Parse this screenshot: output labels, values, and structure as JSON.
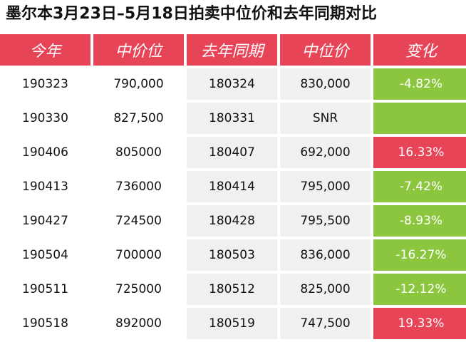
{
  "title": "墨尔本3月23日–5月18日拍卖中位价和去年同期对比",
  "headers": [
    "今年",
    "中价位",
    "去年同期",
    "中位价",
    "变化"
  ],
  "rows": [
    {
      "this_year": "190323",
      "this_price": "790,000",
      "last_year": "180324",
      "last_price": "830,000",
      "change": "-4.82%",
      "trend": "neg"
    },
    {
      "this_year": "190330",
      "this_price": "827,500",
      "last_year": "180331",
      "last_price": "SNR",
      "change": "",
      "trend": "neg"
    },
    {
      "this_year": "190406",
      "this_price": "805000",
      "last_year": "180407",
      "last_price": "692,000",
      "change": "16.33%",
      "trend": "pos"
    },
    {
      "this_year": "190413",
      "this_price": "736000",
      "last_year": "180414",
      "last_price": "795,000",
      "change": "-7.42%",
      "trend": "neg"
    },
    {
      "this_year": "190427",
      "this_price": "724500",
      "last_year": "180428",
      "last_price": "795,500",
      "change": "-8.93%",
      "trend": "neg"
    },
    {
      "this_year": "190504",
      "this_price": "700000",
      "last_year": "180503",
      "last_price": "836,000",
      "change": "-16.27%",
      "trend": "neg"
    },
    {
      "this_year": "190511",
      "this_price": "725000",
      "last_year": "180512",
      "last_price": "825,000",
      "change": "-12.12%",
      "trend": "neg"
    },
    {
      "this_year": "190518",
      "this_price": "892000",
      "last_year": "180519",
      "last_price": "747,500",
      "change": "19.33%",
      "trend": "pos"
    }
  ],
  "colors": {
    "header": "#e84458",
    "positive": "#e84458",
    "negative": "#8cc63f",
    "shade": "#f0f0f0"
  }
}
